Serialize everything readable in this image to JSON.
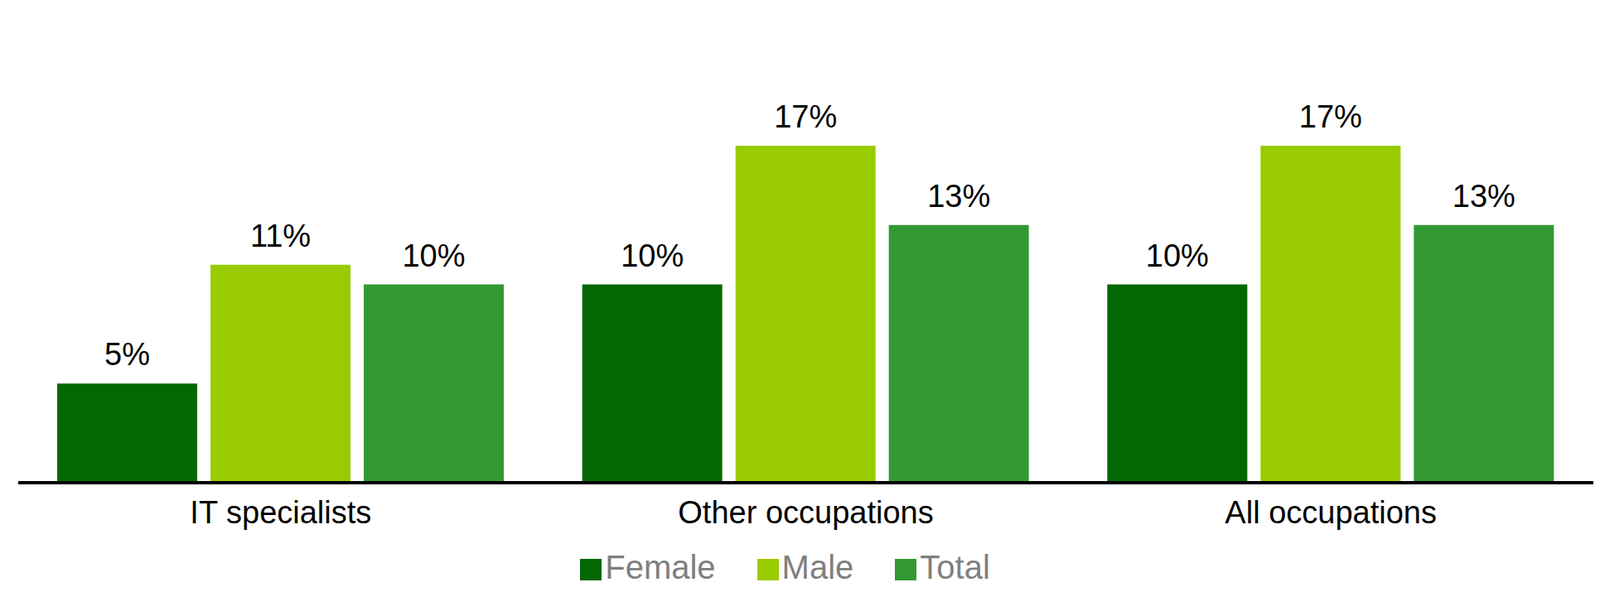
{
  "chart_data": {
    "type": "bar",
    "categories": [
      "IT specialists",
      "Other occupations",
      "All occupations"
    ],
    "series": [
      {
        "name": "Female",
        "color": "#036803",
        "values": [
          5,
          10,
          10
        ],
        "value_labels": [
          "5%",
          "10%",
          "10%"
        ]
      },
      {
        "name": "Male",
        "color": "#99cc00",
        "values": [
          11,
          17,
          17
        ],
        "value_labels": [
          "11%",
          "17%",
          "17%"
        ]
      },
      {
        "name": "Total",
        "color": "#339933",
        "values": [
          10,
          13,
          13
        ],
        "value_labels": [
          "10%",
          "13%",
          "13%"
        ]
      }
    ],
    "data_labels": true,
    "tick_labels": "x",
    "grid": false,
    "legend": "bottom"
  }
}
